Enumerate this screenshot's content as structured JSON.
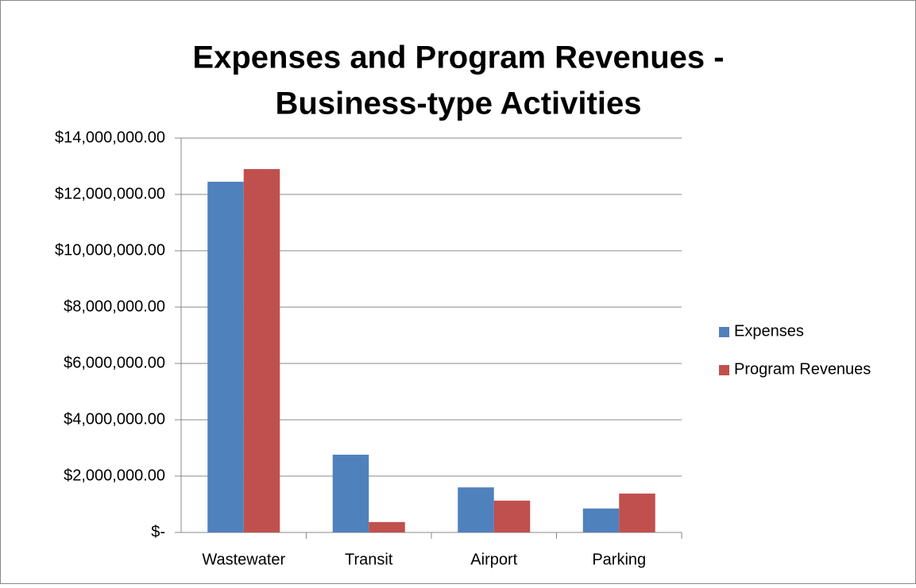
{
  "chart_data": {
    "type": "bar",
    "title": [
      "Expenses and Program Revenues -",
      "Business-type Activities"
    ],
    "categories": [
      "Wastewater",
      "Transit",
      "Airport",
      "Parking"
    ],
    "series": [
      {
        "name": "Expenses",
        "color": "#4f81bd",
        "values": [
          12450000,
          2760000,
          1600000,
          850000
        ]
      },
      {
        "name": "Program Revenues",
        "color": "#c0504d",
        "values": [
          12900000,
          370000,
          1130000,
          1380000
        ]
      }
    ],
    "ylim": [
      0,
      14000000
    ],
    "yticks": [
      {
        "value": 0,
        "label": "$-"
      },
      {
        "value": 2000000,
        "label": "$2,000,000.00"
      },
      {
        "value": 4000000,
        "label": "$4,000,000.00"
      },
      {
        "value": 6000000,
        "label": "$6,000,000.00"
      },
      {
        "value": 8000000,
        "label": "$8,000,000.00"
      },
      {
        "value": 10000000,
        "label": "$10,000,000.00"
      },
      {
        "value": 12000000,
        "label": "$12,000,000.00"
      },
      {
        "value": 14000000,
        "label": "$14,000,000.00"
      }
    ],
    "grid": true,
    "legend": "right"
  }
}
